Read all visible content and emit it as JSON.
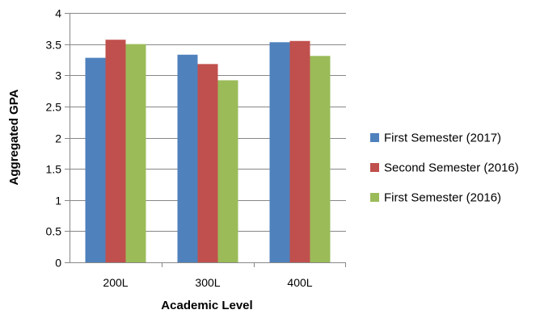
{
  "chart_data": {
    "type": "bar",
    "title": "",
    "xlabel": "Academic Level",
    "ylabel": "Aggregated GPA",
    "categories": [
      "200L",
      "300L",
      "400L"
    ],
    "ylim": [
      0,
      4
    ],
    "y_ticks": [
      "0",
      "0.5",
      "1",
      "1.5",
      "2",
      "2.5",
      "3",
      "3.5",
      "4"
    ],
    "grid": "horizontal",
    "legend_position": "right",
    "series": [
      {
        "name": "First Semester (2017)",
        "color": "#4F81BD",
        "values": [
          3.28,
          3.33,
          3.53
        ]
      },
      {
        "name": "Second Semester (2016)",
        "color": "#C0504D",
        "values": [
          3.57,
          3.18,
          3.55
        ]
      },
      {
        "name": "First Semester (2016)",
        "color": "#9BBB59",
        "values": [
          3.5,
          2.92,
          3.31
        ]
      }
    ]
  }
}
